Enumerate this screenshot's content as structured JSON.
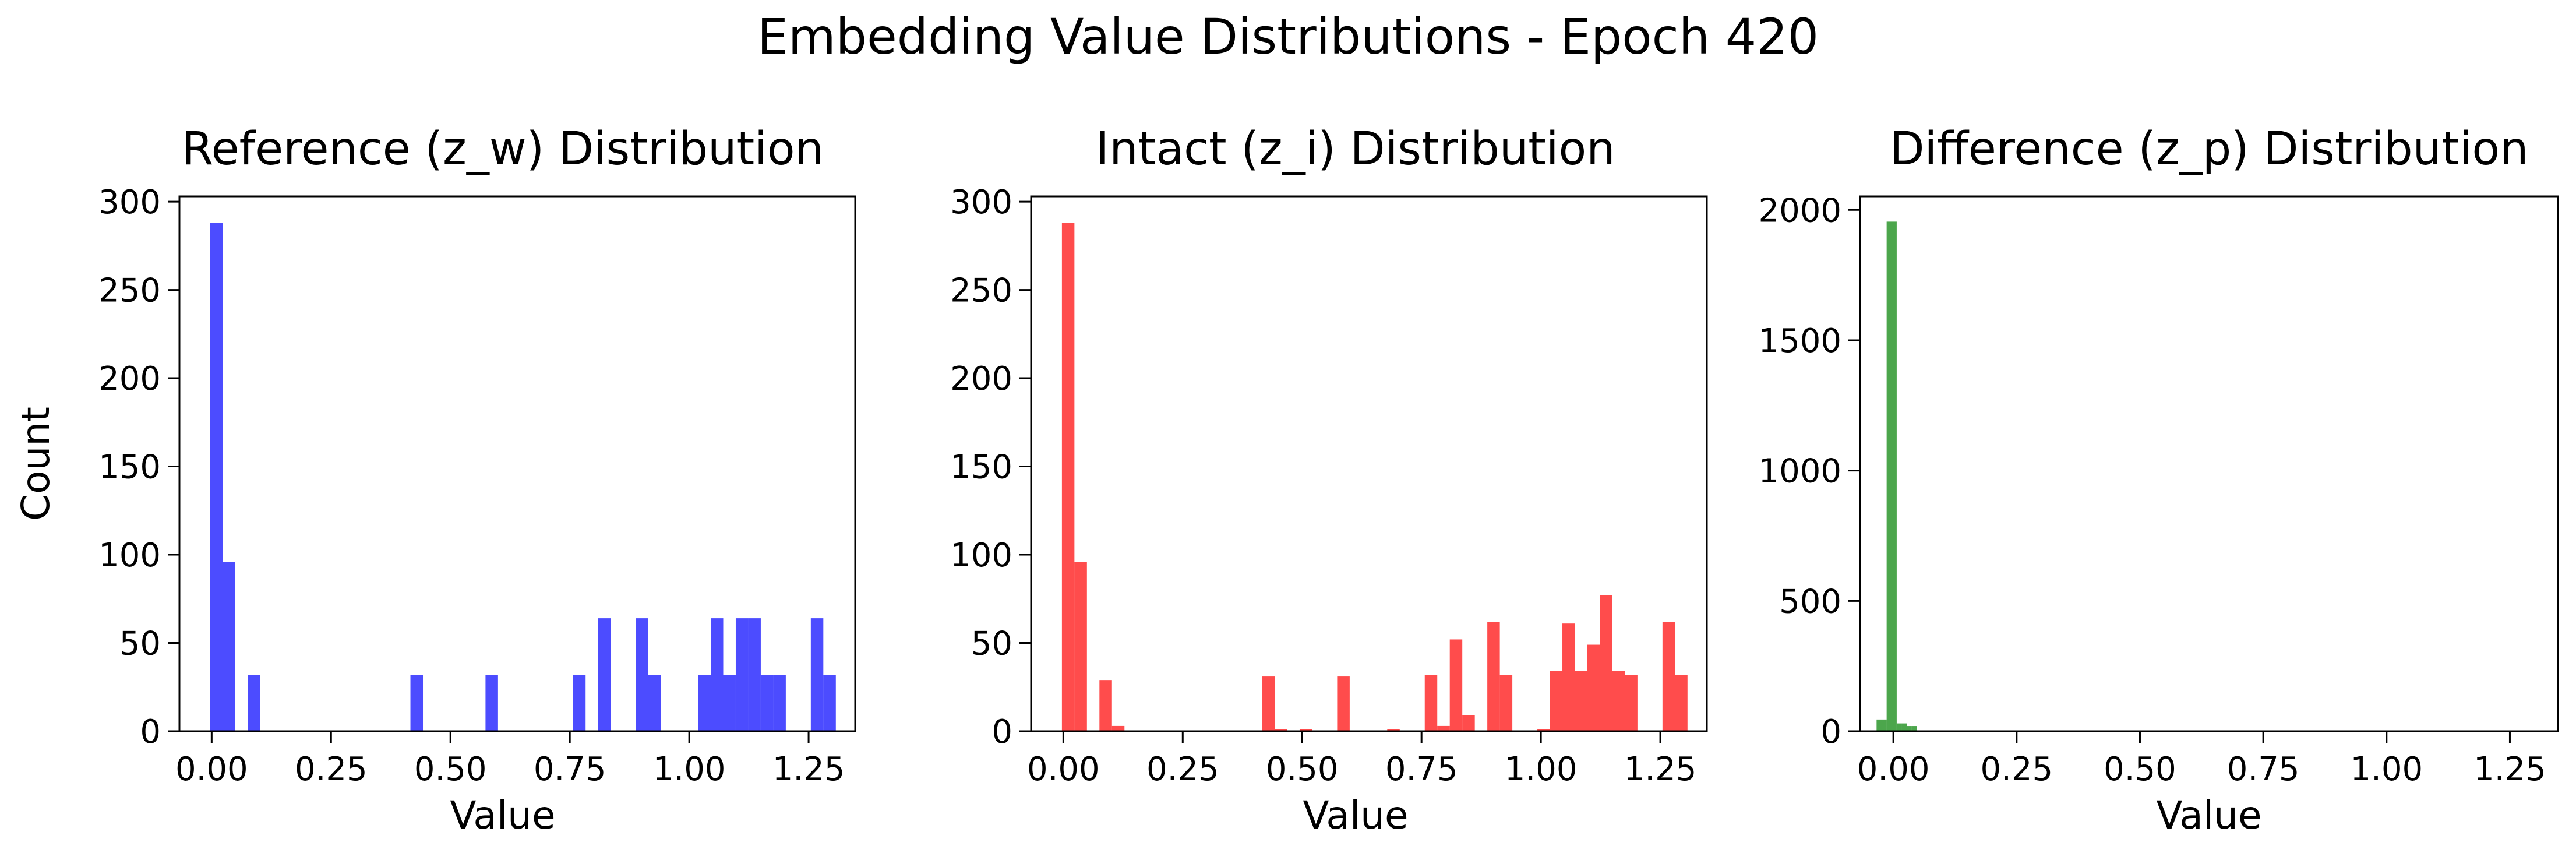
{
  "figure": {
    "title": "Embedding Value Distributions - Epoch 420"
  },
  "chart_data": [
    {
      "type": "bar",
      "histogram": true,
      "title": "Reference (z_w) Distribution",
      "xlabel": "Value",
      "ylabel": "Count",
      "color": "#0000ff",
      "xlim": [
        -0.0675,
        1.3475
      ],
      "ylim": [
        0,
        303
      ],
      "xticks": [
        0.0,
        0.25,
        0.5,
        0.75,
        1.0,
        1.25
      ],
      "xtick_labels": [
        "0.00",
        "0.25",
        "0.50",
        "0.75",
        "1.00",
        "1.25"
      ],
      "yticks": [
        0,
        50,
        100,
        150,
        200,
        250,
        300
      ],
      "ytick_labels": [
        "0",
        "50",
        "100",
        "150",
        "200",
        "250",
        "300"
      ],
      "bin_edges": [
        -0.003,
        0.0232,
        0.0494,
        0.0756,
        0.1018,
        0.128,
        0.1542,
        0.1804,
        0.2066,
        0.2328,
        0.259,
        0.2852,
        0.3114,
        0.3376,
        0.3638,
        0.39,
        0.4162,
        0.4424,
        0.4686,
        0.4948,
        0.521,
        0.5472,
        0.5734,
        0.5996,
        0.6258,
        0.652,
        0.6782,
        0.7044,
        0.7306,
        0.7568,
        0.783,
        0.8092,
        0.8354,
        0.8616,
        0.8878,
        0.914,
        0.9402,
        0.9664,
        0.9926,
        1.0188,
        1.045,
        1.0712,
        1.0974,
        1.1236,
        1.1498,
        1.176,
        1.2022,
        1.2284,
        1.2546,
        1.2808,
        1.307
      ],
      "counts": [
        288,
        96,
        0,
        32,
        0,
        0,
        0,
        0,
        0,
        0,
        0,
        0,
        0,
        0,
        0,
        0,
        32,
        0,
        0,
        0,
        0,
        0,
        32,
        0,
        0,
        0,
        0,
        0,
        0,
        32,
        0,
        64,
        0,
        0,
        64,
        32,
        0,
        0,
        0,
        32,
        64,
        32,
        64,
        64,
        32,
        32,
        0,
        0,
        64,
        32
      ]
    },
    {
      "type": "bar",
      "histogram": true,
      "title": "Intact (z_i) Distribution",
      "xlabel": "Value",
      "ylabel": "",
      "color": "#ff0000",
      "xlim": [
        -0.0675,
        1.3475
      ],
      "ylim": [
        0,
        303
      ],
      "xticks": [
        0.0,
        0.25,
        0.5,
        0.75,
        1.0,
        1.25
      ],
      "xtick_labels": [
        "0.00",
        "0.25",
        "0.50",
        "0.75",
        "1.00",
        "1.25"
      ],
      "yticks": [
        0,
        50,
        100,
        150,
        200,
        250,
        300
      ],
      "ytick_labels": [
        "0",
        "50",
        "100",
        "150",
        "200",
        "250",
        "300"
      ],
      "bin_edges": [
        -0.003,
        0.0232,
        0.0494,
        0.0756,
        0.1018,
        0.128,
        0.1542,
        0.1804,
        0.2066,
        0.2328,
        0.259,
        0.2852,
        0.3114,
        0.3376,
        0.3638,
        0.39,
        0.4162,
        0.4424,
        0.4686,
        0.4948,
        0.521,
        0.5472,
        0.5734,
        0.5996,
        0.6258,
        0.652,
        0.6782,
        0.7044,
        0.7306,
        0.7568,
        0.783,
        0.8092,
        0.8354,
        0.8616,
        0.8878,
        0.914,
        0.9402,
        0.9664,
        0.9926,
        1.0188,
        1.045,
        1.0712,
        1.0974,
        1.1236,
        1.1498,
        1.176,
        1.2022,
        1.2284,
        1.2546,
        1.2808,
        1.307
      ],
      "counts": [
        288,
        96,
        0,
        29,
        3,
        0,
        0,
        0,
        0,
        0,
        0,
        0,
        0,
        0,
        0,
        0,
        31,
        1,
        0,
        1,
        0,
        0,
        31,
        0,
        0,
        0,
        1,
        0,
        0,
        32,
        3,
        52,
        9,
        0,
        62,
        32,
        0,
        0,
        1,
        34,
        61,
        34,
        49,
        77,
        34,
        32,
        0,
        0,
        62,
        32
      ]
    },
    {
      "type": "bar",
      "histogram": true,
      "title": "Difference (z_p) Distribution",
      "xlabel": "Value",
      "ylabel": "",
      "color": "#008000",
      "xlim": [
        -0.0675,
        1.3475
      ],
      "ylim": [
        0,
        2052
      ],
      "xticks": [
        0.0,
        0.25,
        0.5,
        0.75,
        1.0,
        1.25
      ],
      "xtick_labels": [
        "0.00",
        "0.25",
        "0.50",
        "0.75",
        "1.00",
        "1.25"
      ],
      "yticks": [
        0,
        500,
        1000,
        1500,
        2000
      ],
      "ytick_labels": [
        "0",
        "500",
        "1000",
        "1500",
        "2000"
      ],
      "bin_edges": [
        -0.034,
        -0.0238,
        -0.0136,
        -0.0034,
        0.0068,
        0.017,
        0.0272,
        0.0374,
        0.0476,
        0.0578,
        0.068
      ],
      "counts": [
        45,
        45,
        1955,
        1955,
        30,
        30,
        20,
        20,
        2,
        2
      ]
    }
  ]
}
